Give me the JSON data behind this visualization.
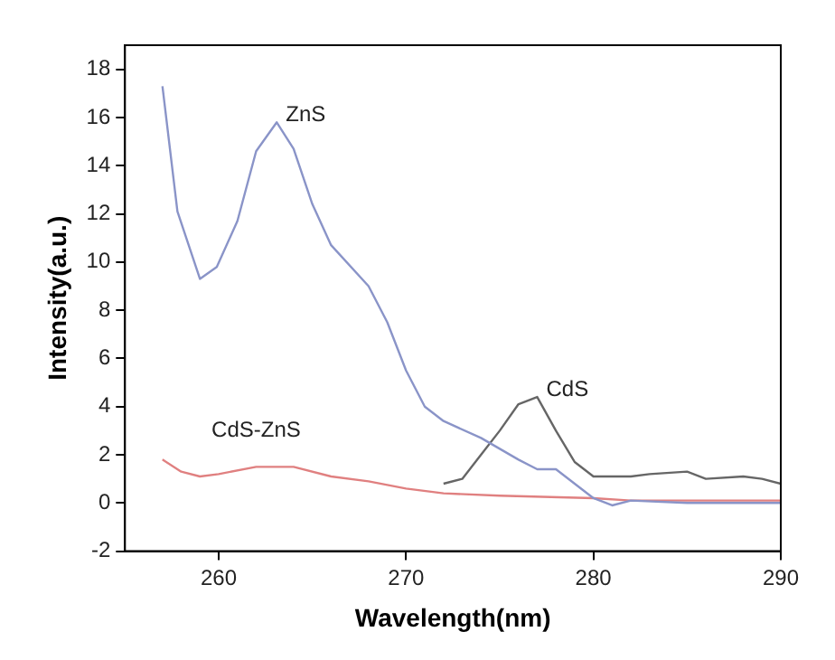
{
  "chart_data": {
    "type": "line",
    "xlabel": "Wavelength(nm)",
    "ylabel": "Intensity(a.u.)",
    "xlim": [
      255,
      290
    ],
    "xticks": [
      260,
      270,
      280,
      290
    ],
    "ylim": [
      -2,
      19
    ],
    "yticks": [
      -2,
      0,
      2,
      4,
      6,
      8,
      10,
      12,
      14,
      16,
      18
    ],
    "grid": false,
    "legend": false,
    "marker": "none",
    "line_style": "solid",
    "series": [
      {
        "name": "ZnS",
        "color": "#8a94c8",
        "x": [
          257,
          257.8,
          259,
          259.9,
          261,
          262,
          263.1,
          264,
          265,
          266,
          268,
          269,
          270,
          271,
          272,
          274,
          276,
          277,
          278,
          279,
          280,
          281,
          282,
          285,
          290
        ],
        "values": [
          17.3,
          12.1,
          9.3,
          9.8,
          11.7,
          14.6,
          15.8,
          14.7,
          12.4,
          10.7,
          9.0,
          7.5,
          5.5,
          4.0,
          3.4,
          2.7,
          1.8,
          1.4,
          1.4,
          0.8,
          0.2,
          -0.1,
          0.1,
          0.0,
          0.0
        ]
      },
      {
        "name": "CdS",
        "color": "#666666",
        "x": [
          272,
          273,
          274,
          275,
          276,
          277,
          278,
          279,
          280,
          282,
          283,
          285,
          286,
          288,
          289,
          290
        ],
        "values": [
          0.8,
          1.0,
          2.0,
          3.0,
          4.1,
          4.4,
          3.0,
          1.7,
          1.1,
          1.1,
          1.2,
          1.3,
          1.0,
          1.1,
          1.0,
          0.8
        ]
      },
      {
        "name": "CdS-ZnS",
        "color": "#e08080",
        "x": [
          257,
          258,
          259,
          260,
          262,
          264,
          266,
          268,
          270,
          272,
          275,
          280,
          282,
          285,
          290
        ],
        "values": [
          1.8,
          1.3,
          1.1,
          1.2,
          1.5,
          1.5,
          1.1,
          0.9,
          0.6,
          0.4,
          0.3,
          0.2,
          0.1,
          0.1,
          0.1
        ]
      }
    ]
  }
}
